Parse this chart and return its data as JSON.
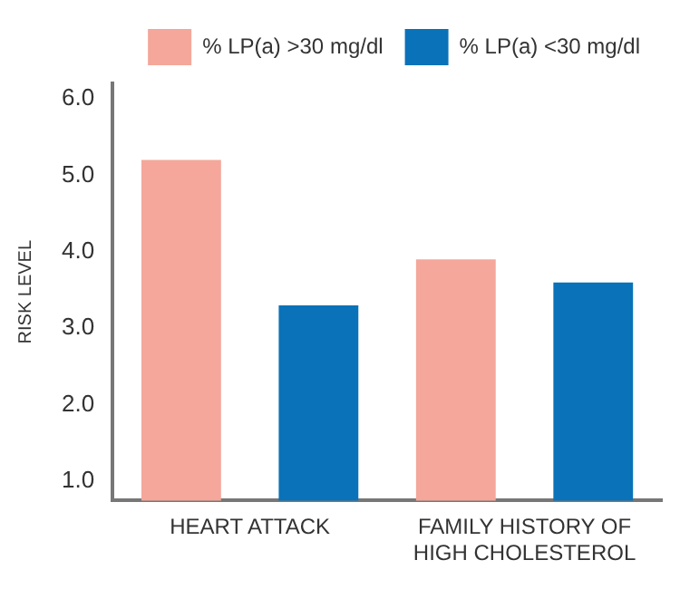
{
  "chart_data": {
    "type": "bar",
    "ylabel": "RISK LEVEL",
    "categories": [
      "HEART ATTACK",
      "FAMILY HISTORY OF HIGH CHOLESTEROL"
    ],
    "series": [
      {
        "name": "% LP(a) >30 mg/dl",
        "color": "#f4a79a",
        "values": [
          5.2,
          3.9
        ]
      },
      {
        "name": "% LP(a) <30 mg/dl",
        "color": "#0a72b8",
        "values": [
          3.3,
          3.6
        ]
      }
    ],
    "ylim": [
      0.75,
      6.2
    ],
    "yticks": [
      {
        "value": 1,
        "label": "1.0"
      },
      {
        "value": 2,
        "label": "2.0"
      },
      {
        "value": 3,
        "label": "3.0"
      },
      {
        "value": 4,
        "label": "4.0"
      },
      {
        "value": 5,
        "label": "5.0"
      },
      {
        "value": 6,
        "label": "6.0"
      }
    ],
    "grid": false,
    "legend": "top right"
  }
}
